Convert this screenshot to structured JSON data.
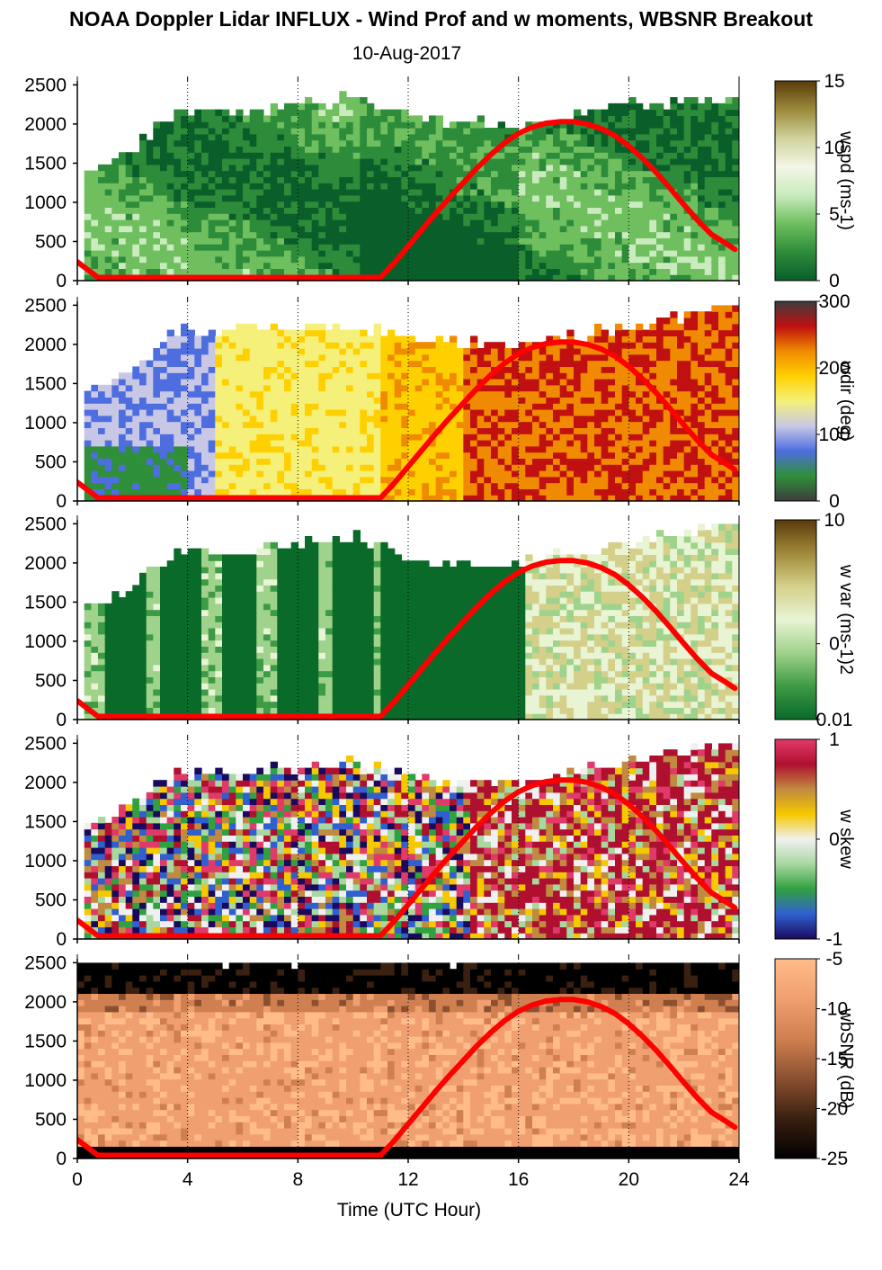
{
  "title": "NOAA Doppler Lidar INFLUX - Wind Prof and w moments, WBSNR Breakout",
  "date": "10-Aug-2017",
  "chart_data": {
    "type": "heatmap",
    "xlabel": "Time (UTC Hour)",
    "x_ticks": [
      0,
      4,
      8,
      12,
      16,
      20,
      24
    ],
    "xlim": [
      0,
      24
    ],
    "y_ticks": [
      0,
      500,
      1000,
      1500,
      2000,
      2500
    ],
    "ylim": [
      0,
      2550
    ],
    "vertical_gridlines_dotted": [
      4,
      8,
      12,
      16,
      20
    ],
    "overlay_line": {
      "color": "#ff0000",
      "x": [
        0,
        0.75,
        11,
        11.5,
        12,
        12.5,
        13,
        13.5,
        14,
        14.5,
        15,
        15.5,
        16,
        16.5,
        17,
        17.5,
        18,
        18.5,
        19,
        19.5,
        20,
        20.5,
        21,
        21.5,
        22,
        22.5,
        23,
        23.5,
        23.85
      ],
      "y": [
        240,
        40,
        40,
        230,
        440,
        650,
        860,
        1060,
        1250,
        1440,
        1610,
        1760,
        1880,
        1960,
        2010,
        2030,
        2030,
        2000,
        1940,
        1850,
        1720,
        1560,
        1380,
        1180,
        970,
        770,
        590,
        480,
        400
      ]
    },
    "panels": [
      {
        "id": "wspd",
        "colorbar_label": "wspd (ms-1)",
        "colorbar_ticks": [
          "15",
          "10",
          "5",
          "0"
        ],
        "clim": [
          0,
          15
        ],
        "colormap": [
          "#0a5e2a",
          "#2d8c3a",
          "#6fbf5f",
          "#c9ebbe",
          "#f4f6e6",
          "#cfd29a",
          "#9a8a3a",
          "#5a3a0a"
        ],
        "data_top_by_hour": [
          [
            0,
            1350
          ],
          [
            2,
            1700
          ],
          [
            3.5,
            2100
          ],
          [
            6,
            2100
          ],
          [
            10,
            2300
          ],
          [
            13,
            2000
          ],
          [
            16,
            1950
          ],
          [
            20,
            2200
          ],
          [
            24,
            2300
          ]
        ]
      },
      {
        "id": "wdir",
        "colorbar_label": "wdir (deg)",
        "colorbar_ticks": [
          "300",
          "200",
          "100",
          "0"
        ],
        "clim": [
          0,
          360
        ],
        "colormap": [
          "#3c3c3c",
          "#2f8f3a",
          "#4e6ee0",
          "#c8c8e6",
          "#f5f07a",
          "#ffd000",
          "#f08a00",
          "#c01010",
          "#3c3c3c"
        ],
        "data_top_by_hour": [
          [
            0,
            1300
          ],
          [
            2,
            1700
          ],
          [
            3.5,
            2150
          ],
          [
            6,
            2150
          ],
          [
            10,
            2200
          ],
          [
            13,
            2000
          ],
          [
            16,
            1950
          ],
          [
            20,
            2200
          ],
          [
            24,
            2500
          ]
        ]
      },
      {
        "id": "wvar",
        "colorbar_label": "w var (ms-1)2",
        "colorbar_ticks": [
          "10",
          "0",
          "0.01"
        ],
        "clim": [
          0.01,
          10
        ],
        "colormap": [
          "#0a6a2a",
          "#3d9a45",
          "#9fd28a",
          "#e8f4d4",
          "#d4d08a",
          "#a08a3a",
          "#5a3a0a"
        ],
        "data_top_by_hour": [
          [
            0,
            1350
          ],
          [
            2,
            1700
          ],
          [
            3.5,
            2100
          ],
          [
            6,
            2100
          ],
          [
            10,
            2300
          ],
          [
            13,
            1950
          ],
          [
            16,
            1950
          ],
          [
            20,
            2250
          ],
          [
            24,
            2500
          ]
        ]
      },
      {
        "id": "wskew",
        "colorbar_label": "w skew",
        "colorbar_ticks": [
          "1",
          "0",
          "-1"
        ],
        "clim": [
          -1,
          1
        ],
        "colormap": [
          "#1a0a5e",
          "#3060d0",
          "#30a040",
          "#a8d8a0",
          "#f0f0f0",
          "#f5c800",
          "#c08a40",
          "#b01030",
          "#e03a6a"
        ],
        "data_top_by_hour": [
          [
            0,
            1350
          ],
          [
            2,
            1700
          ],
          [
            3.5,
            2100
          ],
          [
            6,
            2100
          ],
          [
            10,
            2200
          ],
          [
            13,
            2000
          ],
          [
            16,
            1950
          ],
          [
            20,
            2250
          ],
          [
            24,
            2500
          ]
        ]
      },
      {
        "id": "wbsnr",
        "colorbar_label": "wbSNR (dB)",
        "colorbar_ticks": [
          "-5",
          "-10",
          "-15",
          "-20",
          "-25"
        ],
        "clim": [
          -25,
          -5
        ],
        "colormap": [
          "#000000",
          "#3a2010",
          "#8a5030",
          "#d08050",
          "#f0a070",
          "#ffbb88"
        ],
        "data_top_by_hour": [
          [
            0,
            2500
          ],
          [
            24,
            2500
          ]
        ]
      }
    ]
  }
}
